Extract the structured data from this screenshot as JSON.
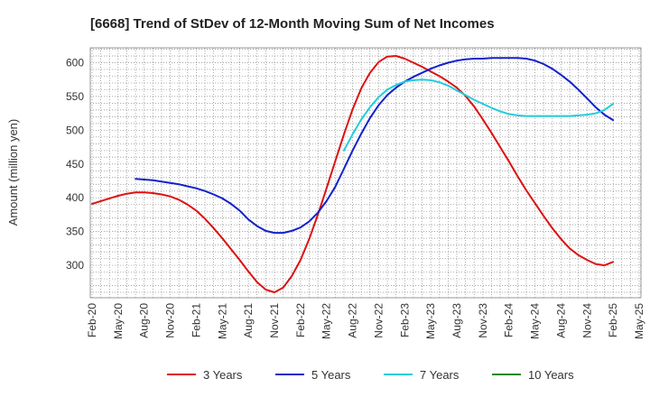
{
  "chart_data": {
    "type": "line",
    "title": "[6668]  Trend of StDev of 12-Month Moving Sum of Net Incomes",
    "ylabel": "Amount (million yen)",
    "xlabel": "",
    "ylim": [
      252,
      622
    ],
    "y_ticks": [
      300,
      350,
      400,
      450,
      500,
      550,
      600
    ],
    "x_tick_labels": [
      "Feb-20",
      "May-20",
      "Aug-20",
      "Nov-20",
      "Feb-21",
      "May-21",
      "Aug-21",
      "Nov-21",
      "Feb-22",
      "May-22",
      "Aug-22",
      "Nov-22",
      "Feb-23",
      "May-23",
      "Aug-23",
      "Nov-23",
      "Feb-24",
      "May-24",
      "Aug-24",
      "Nov-24",
      "Feb-25",
      "May-25"
    ],
    "grid": true,
    "legend_position": "bottom",
    "series": [
      {
        "name": "3 Years",
        "color": "#dd1111",
        "points": [
          [
            "Feb-20",
            391
          ],
          [
            "Mar-20",
            395
          ],
          [
            "Apr-20",
            399
          ],
          [
            "May-20",
            403
          ],
          [
            "Jun-20",
            406
          ],
          [
            "Jul-20",
            408
          ],
          [
            "Aug-20",
            408
          ],
          [
            "Sep-20",
            407
          ],
          [
            "Oct-20",
            405
          ],
          [
            "Nov-20",
            402
          ],
          [
            "Dec-20",
            397
          ],
          [
            "Jan-21",
            390
          ],
          [
            "Feb-21",
            381
          ],
          [
            "Mar-21",
            369
          ],
          [
            "Apr-21",
            355
          ],
          [
            "May-21",
            340
          ],
          [
            "Jun-21",
            324
          ],
          [
            "Jul-21",
            308
          ],
          [
            "Aug-21",
            291
          ],
          [
            "Sep-21",
            275
          ],
          [
            "Oct-21",
            264
          ],
          [
            "Nov-21",
            260
          ],
          [
            "Dec-21",
            267
          ],
          [
            "Jan-22",
            284
          ],
          [
            "Feb-22",
            308
          ],
          [
            "Mar-22",
            339
          ],
          [
            "Apr-22",
            375
          ],
          [
            "May-22",
            414
          ],
          [
            "Jun-22",
            454
          ],
          [
            "Jul-22",
            494
          ],
          [
            "Aug-22",
            531
          ],
          [
            "Sep-22",
            562
          ],
          [
            "Oct-22",
            585
          ],
          [
            "Nov-22",
            601
          ],
          [
            "Dec-22",
            609
          ],
          [
            "Jan-23",
            610
          ],
          [
            "Feb-23",
            606
          ],
          [
            "Mar-23",
            600
          ],
          [
            "Apr-23",
            594
          ],
          [
            "May-23",
            587
          ],
          [
            "Jun-23",
            580
          ],
          [
            "Jul-23",
            572
          ],
          [
            "Aug-23",
            563
          ],
          [
            "Sep-23",
            551
          ],
          [
            "Oct-23",
            535
          ],
          [
            "Nov-23",
            516
          ],
          [
            "Dec-23",
            496
          ],
          [
            "Jan-24",
            475
          ],
          [
            "Feb-24",
            454
          ],
          [
            "Mar-24",
            432
          ],
          [
            "Apr-24",
            411
          ],
          [
            "May-24",
            392
          ],
          [
            "Jun-24",
            373
          ],
          [
            "Jul-24",
            355
          ],
          [
            "Aug-24",
            339
          ],
          [
            "Sep-24",
            325
          ],
          [
            "Oct-24",
            315
          ],
          [
            "Nov-24",
            308
          ],
          [
            "Dec-24",
            302
          ],
          [
            "Jan-25",
            300
          ],
          [
            "Feb-25",
            305
          ]
        ]
      },
      {
        "name": "5 Years",
        "color": "#1122cc",
        "points": [
          [
            "Jul-20",
            428
          ],
          [
            "Aug-20",
            427
          ],
          [
            "Sep-20",
            426
          ],
          [
            "Oct-20",
            424
          ],
          [
            "Nov-20",
            422
          ],
          [
            "Dec-20",
            420
          ],
          [
            "Jan-21",
            417
          ],
          [
            "Feb-21",
            414
          ],
          [
            "Mar-21",
            410
          ],
          [
            "Apr-21",
            405
          ],
          [
            "May-21",
            399
          ],
          [
            "Jun-21",
            391
          ],
          [
            "Jul-21",
            381
          ],
          [
            "Aug-21",
            368
          ],
          [
            "Sep-21",
            358
          ],
          [
            "Oct-21",
            351
          ],
          [
            "Nov-21",
            348
          ],
          [
            "Dec-21",
            348
          ],
          [
            "Jan-22",
            351
          ],
          [
            "Feb-22",
            356
          ],
          [
            "Mar-22",
            365
          ],
          [
            "Apr-22",
            378
          ],
          [
            "May-22",
            395
          ],
          [
            "Jun-22",
            416
          ],
          [
            "Jul-22",
            443
          ],
          [
            "Aug-22",
            470
          ],
          [
            "Sep-22",
            495
          ],
          [
            "Oct-22",
            518
          ],
          [
            "Nov-22",
            537
          ],
          [
            "Dec-22",
            552
          ],
          [
            "Jan-23",
            563
          ],
          [
            "Feb-23",
            572
          ],
          [
            "Mar-23",
            579
          ],
          [
            "Apr-23",
            585
          ],
          [
            "May-23",
            591
          ],
          [
            "Jun-23",
            596
          ],
          [
            "Jul-23",
            600
          ],
          [
            "Aug-23",
            603
          ],
          [
            "Sep-23",
            605
          ],
          [
            "Oct-23",
            606
          ],
          [
            "Nov-23",
            606
          ],
          [
            "Dec-23",
            607
          ],
          [
            "Jan-24",
            607
          ],
          [
            "Feb-24",
            607
          ],
          [
            "Mar-24",
            607
          ],
          [
            "Apr-24",
            606
          ],
          [
            "May-24",
            603
          ],
          [
            "Jun-24",
            598
          ],
          [
            "Jul-24",
            591
          ],
          [
            "Aug-24",
            582
          ],
          [
            "Sep-24",
            572
          ],
          [
            "Oct-24",
            560
          ],
          [
            "Nov-24",
            547
          ],
          [
            "Dec-24",
            534
          ],
          [
            "Jan-25",
            523
          ],
          [
            "Feb-25",
            515
          ]
        ]
      },
      {
        "name": "7 Years",
        "color": "#22ccdd",
        "points": [
          [
            "Jul-22",
            470
          ],
          [
            "Aug-22",
            494
          ],
          [
            "Sep-22",
            516
          ],
          [
            "Oct-22",
            534
          ],
          [
            "Nov-22",
            549
          ],
          [
            "Dec-22",
            560
          ],
          [
            "Jan-23",
            567
          ],
          [
            "Feb-23",
            572
          ],
          [
            "Mar-23",
            574
          ],
          [
            "Apr-23",
            575
          ],
          [
            "May-23",
            574
          ],
          [
            "Jun-23",
            571
          ],
          [
            "Jul-23",
            566
          ],
          [
            "Aug-23",
            559
          ],
          [
            "Sep-23",
            552
          ],
          [
            "Oct-23",
            545
          ],
          [
            "Nov-23",
            539
          ],
          [
            "Dec-23",
            533
          ],
          [
            "Jan-24",
            528
          ],
          [
            "Feb-24",
            524
          ],
          [
            "Mar-24",
            522
          ],
          [
            "Apr-24",
            521
          ],
          [
            "May-24",
            521
          ],
          [
            "Jun-24",
            521
          ],
          [
            "Jul-24",
            521
          ],
          [
            "Aug-24",
            521
          ],
          [
            "Sep-24",
            521
          ],
          [
            "Oct-24",
            522
          ],
          [
            "Nov-24",
            523
          ],
          [
            "Dec-24",
            525
          ],
          [
            "Jan-25",
            530
          ],
          [
            "Feb-25",
            539
          ]
        ]
      },
      {
        "name": "10 Years",
        "color": "#228822",
        "points": []
      }
    ]
  }
}
